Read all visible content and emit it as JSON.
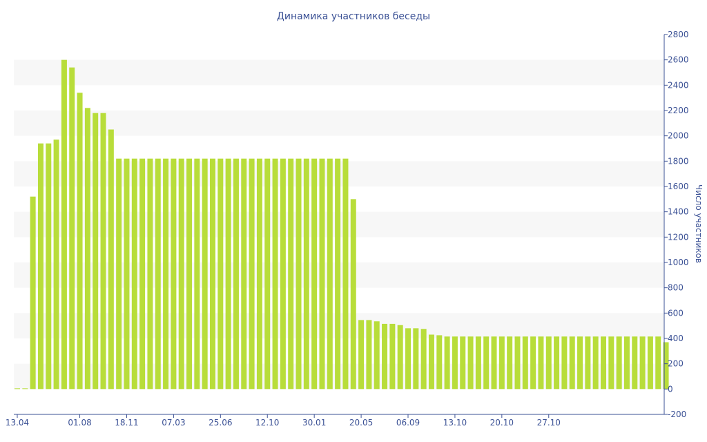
{
  "chart_data": {
    "type": "bar",
    "title": "Динамика участников беседы",
    "xlabel": "",
    "ylabel": "Число участников",
    "ylim": [
      -200,
      2800
    ],
    "y_axis_side": "right",
    "y_ticks": [
      -200,
      0,
      200,
      400,
      600,
      800,
      1000,
      1200,
      1400,
      1600,
      1800,
      2000,
      2200,
      2400,
      2600,
      2800
    ],
    "grid": "alternating-bands",
    "legend": "none",
    "colors": {
      "bar": "#b8dd3a",
      "band": "#f7f7f7",
      "axis": "#3b5195",
      "text": "#3b5195"
    },
    "x_tick_labels": [
      "13.04",
      "01.08",
      "18.11",
      "07.03",
      "25.06",
      "12.10",
      "30.01",
      "20.05",
      "06.09",
      "13.10",
      "20.10",
      "27.10"
    ],
    "x_tick_index": [
      0,
      8,
      14,
      20,
      26,
      32,
      38,
      44,
      50,
      56,
      62,
      68
    ],
    "values": [
      5,
      5,
      1520,
      1940,
      1940,
      1970,
      2600,
      2540,
      2340,
      2220,
      2180,
      2180,
      2050,
      1820,
      1820,
      1820,
      1820,
      1820,
      1820,
      1820,
      1820,
      1820,
      1820,
      1820,
      1820,
      1820,
      1820,
      1820,
      1820,
      1820,
      1820,
      1820,
      1820,
      1820,
      1820,
      1820,
      1820,
      1820,
      1820,
      1820,
      1820,
      1820,
      1820,
      1500,
      545,
      545,
      535,
      515,
      515,
      505,
      480,
      480,
      475,
      430,
      425,
      415,
      415,
      415,
      415,
      415,
      415,
      415,
      415,
      415,
      415,
      415,
      415,
      415,
      415,
      415,
      415,
      415,
      415,
      415,
      415,
      415,
      415,
      415,
      415,
      415,
      415,
      415,
      415,
      370
    ]
  }
}
